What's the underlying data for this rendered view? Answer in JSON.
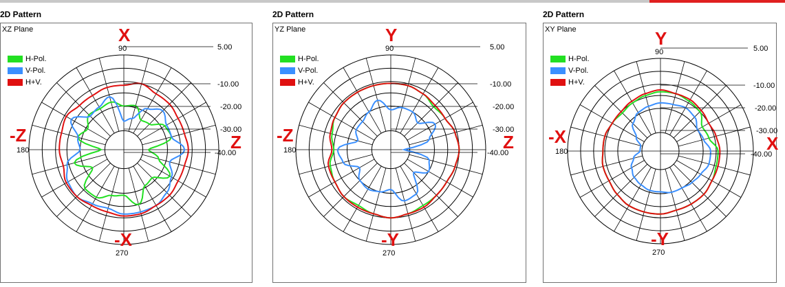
{
  "colors": {
    "h_pol": "#22e022",
    "v_pol": "#3a8fff",
    "h_plus_v": "#e01010",
    "annotation": "#e01010"
  },
  "legend_labels": [
    "H-Pol.",
    "V-Pol.",
    "H+V."
  ],
  "chart_data": [
    {
      "type": "polar",
      "title": "2D Pattern",
      "plane": "XZ Plane",
      "angle_labels": [
        "90",
        "180",
        "270"
      ],
      "radial_labels": [
        "5.00",
        "-10.00",
        "-20.00",
        "-30.00",
        "-40.00"
      ],
      "annotations": {
        "top": "X",
        "bottom": "-X",
        "left": "-Z",
        "right": "Z"
      },
      "angles": [
        0,
        15,
        30,
        45,
        60,
        75,
        90,
        105,
        120,
        135,
        150,
        165,
        180,
        195,
        210,
        225,
        240,
        255,
        270,
        285,
        300,
        315,
        330,
        345
      ],
      "series": [
        {
          "name": "H-Pol.",
          "values": [
            -32,
            -19,
            -20,
            -26,
            -27,
            -21,
            -22,
            -19,
            -20,
            -19,
            -23,
            -20,
            -33,
            -18,
            -26,
            -16,
            -16,
            -20,
            -21,
            -15,
            -23,
            -24,
            -17,
            -26
          ]
        },
        {
          "name": "V-Pol.",
          "values": [
            -13,
            -19,
            -19,
            -16,
            -20,
            -28,
            -30,
            -16,
            -19,
            -20,
            -13,
            -20,
            -22,
            -14,
            -11,
            -10,
            -12,
            -13,
            -11,
            -11,
            -11,
            -13,
            -16,
            -20
          ]
        },
        {
          "name": "H+V.",
          "values": [
            -11,
            -12,
            -12,
            -11,
            -11,
            -9,
            -11,
            -11,
            -12,
            -12,
            -10,
            -11,
            -11,
            -12,
            -10,
            -10,
            -11,
            -11,
            -10,
            -10,
            -11,
            -11,
            -12,
            -12
          ]
        }
      ]
    },
    {
      "type": "polar",
      "title": "2D Pattern",
      "plane": "YZ Plane",
      "angle_labels": [
        "90",
        "180",
        "270"
      ],
      "radial_labels": [
        "5.00",
        "-10.00",
        "-20.00",
        "-30.00",
        "-40.00"
      ],
      "annotations": {
        "top": "Y",
        "bottom": "-Y",
        "left": "-Z",
        "right": "Z"
      },
      "angles": [
        0,
        15,
        30,
        45,
        60,
        75,
        90,
        105,
        120,
        135,
        150,
        165,
        180,
        195,
        210,
        225,
        240,
        255,
        270,
        285,
        300,
        315,
        330,
        345
      ],
      "series": [
        {
          "name": "H-Pol.",
          "values": [
            -9,
            -10,
            -12,
            -13,
            -11,
            -10,
            -10,
            -10,
            -10,
            -10,
            -11,
            -13,
            -15,
            -12,
            -11,
            -10,
            -11,
            -10,
            -9,
            -10,
            -11,
            -11,
            -11,
            -10
          ]
        },
        {
          "name": "V-Pol.",
          "values": [
            -38,
            -24,
            -18,
            -25,
            -22,
            -22,
            -24,
            -18,
            -22,
            -24,
            -24,
            -27,
            -17,
            -19,
            -26,
            -22,
            -21,
            -22,
            -24,
            -17,
            -18,
            -28,
            -22,
            -24
          ]
        },
        {
          "name": "H+V.",
          "values": [
            -9,
            -10,
            -12,
            -12,
            -11,
            -10,
            -10,
            -10,
            -10,
            -10,
            -11,
            -12,
            -14,
            -11,
            -11,
            -10,
            -10,
            -10,
            -9,
            -10,
            -10,
            -11,
            -11,
            -10
          ]
        }
      ]
    },
    {
      "type": "polar",
      "title": "2D Pattern",
      "plane": "XY Plane",
      "angle_labels": [
        "90",
        "180",
        "270"
      ],
      "radial_labels": [
        "5.00",
        "-10.00",
        "-20.00",
        "-30.00",
        "-40.00"
      ],
      "annotations": {
        "top": "Y",
        "bottom": "-Y",
        "left": "-X",
        "right": "X"
      },
      "angles": [
        0,
        15,
        30,
        45,
        60,
        75,
        90,
        105,
        120,
        135,
        150,
        165,
        180,
        195,
        210,
        225,
        240,
        255,
        270,
        285,
        300,
        315,
        330,
        345
      ],
      "series": [
        {
          "name": "H-Pol.",
          "values": [
            -14,
            -18,
            -19,
            -15,
            -14,
            -13,
            -13,
            -14,
            -15,
            -16,
            -15,
            -14,
            -14,
            -13,
            -13,
            -12,
            -11,
            -11,
            -11,
            -12,
            -12,
            -12,
            -13,
            -14
          ]
        },
        {
          "name": "V-Pol.",
          "values": [
            -18,
            -21,
            -22,
            -19,
            -18,
            -19,
            -19,
            -20,
            -21,
            -24,
            -30,
            -34,
            -34,
            -30,
            -27,
            -25,
            -24,
            -23,
            -23,
            -22,
            -22,
            -21,
            -20,
            -18
          ]
        },
        {
          "name": "H+V.",
          "values": [
            -13,
            -14,
            -15,
            -14,
            -13,
            -13,
            -12,
            -13,
            -14,
            -15,
            -15,
            -14,
            -14,
            -13,
            -13,
            -12,
            -11,
            -11,
            -11,
            -12,
            -12,
            -12,
            -13,
            -13
          ]
        }
      ]
    }
  ]
}
